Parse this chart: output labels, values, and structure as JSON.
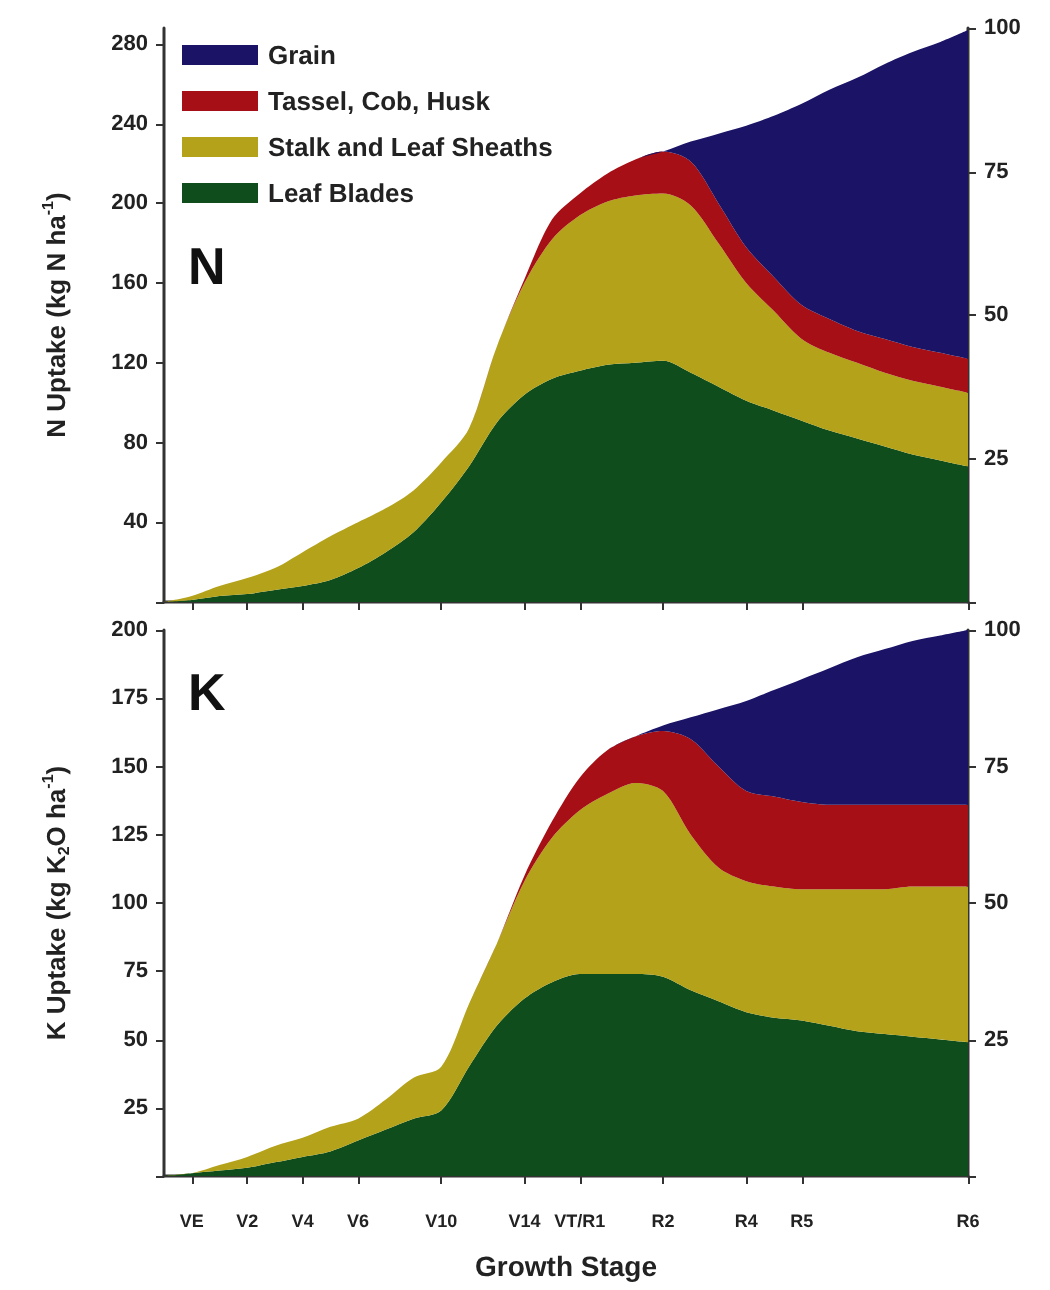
{
  "chart_data": [
    {
      "type": "area",
      "stacked": true,
      "ylabel": "N Uptake (kg N ha$^{-1}$)",
      "annotations": [
        "N"
      ],
      "legend": "top left",
      "tick_labels": "y",
      "categories": [
        null,
        null,
        null,
        null,
        null,
        null,
        null,
        null,
        null,
        null,
        null,
        null,
        null,
        null,
        null,
        null,
        null,
        null,
        null,
        null,
        null,
        null,
        null,
        null,
        null,
        null,
        null,
        null,
        null,
        null
      ],
      "ylim": [
        0,
        288
      ],
      "yticks": [
        {
          "value": 0,
          "label": null
        },
        40,
        80,
        120,
        160,
        200,
        240,
        280
      ],
      "y2lim": [
        0,
        100
      ],
      "y2ticks": [
        {
          "value": 0,
          "label": null
        },
        25,
        50,
        75,
        100
      ],
      "series": [
        {
          "name": "Leaf Blades",
          "color": "#0f4d1c",
          "values": [
            0,
            1,
            3,
            4,
            6,
            8,
            11,
            17,
            25,
            35,
            50,
            68,
            90,
            104,
            112,
            116,
            119,
            120,
            121,
            115,
            108,
            101,
            96,
            91,
            86,
            82,
            78,
            74,
            71,
            68
          ]
        },
        {
          "name": "Stalk and Leaf Sheaths",
          "color": "#b3a21a",
          "values": [
            0,
            2,
            5,
            8,
            11,
            17,
            22,
            23,
            22,
            21,
            20,
            19,
            38,
            56,
            70,
            78,
            82,
            84,
            84,
            84,
            72,
            59,
            50,
            41,
            39,
            38,
            37,
            37,
            37,
            37
          ]
        },
        {
          "name": "Tassel, Cob, Husk",
          "color": "#a50f15",
          "values": [
            0,
            0,
            0,
            0,
            0,
            0,
            0,
            0,
            0,
            0,
            0,
            0,
            0,
            2,
            10,
            11,
            14,
            18,
            21,
            22,
            20,
            18,
            17,
            17,
            17,
            16,
            17,
            17,
            17,
            17
          ]
        },
        {
          "name": "Grain",
          "color": "#1a1366",
          "values": [
            0,
            0,
            0,
            0,
            0,
            0,
            0,
            0,
            0,
            0,
            0,
            0,
            0,
            0,
            0,
            0,
            0,
            0,
            0,
            10,
            35,
            61,
            81,
            101,
            115,
            127,
            138,
            148,
            156,
            165
          ]
        }
      ]
    },
    {
      "type": "area",
      "stacked": true,
      "xlabel": "Growth Stage",
      "ylabel": "K Uptake (kg K$_{2}$O ha$^{-1}$)",
      "annotations": [
        "K"
      ],
      "categories": [
        null,
        "VE",
        null,
        "V2",
        null,
        "V4",
        null,
        "V6",
        null,
        null,
        "V10",
        null,
        null,
        "V14",
        null,
        "VT/R1",
        null,
        null,
        "R2",
        null,
        null,
        "R4",
        null,
        "R5",
        null,
        null,
        null,
        null,
        null,
        "R6"
      ],
      "ylim": [
        0,
        200
      ],
      "yticks": [
        {
          "value": 0,
          "label": null
        },
        25,
        50,
        75,
        100,
        125,
        150,
        175,
        200
      ],
      "y2lim": [
        0,
        100
      ],
      "y2ticks": [
        {
          "value": 0,
          "label": null
        },
        25,
        50,
        75,
        100
      ],
      "series": [
        {
          "color": "#0f4d1c",
          "values": [
            0,
            1,
            2,
            3,
            5,
            7,
            9,
            13,
            17,
            21,
            24,
            40,
            55,
            65,
            71,
            74,
            74,
            74,
            73,
            68,
            64,
            60,
            58,
            57,
            55,
            53,
            52,
            51,
            50,
            49
          ]
        },
        {
          "color": "#b3a21a",
          "values": [
            0,
            0,
            2,
            4,
            6,
            7,
            9,
            8,
            11,
            15,
            16,
            23,
            30,
            43,
            53,
            60,
            66,
            70,
            68,
            57,
            49,
            48,
            48,
            48,
            50,
            52,
            53,
            55,
            56,
            57
          ]
        },
        {
          "color": "#a50f15",
          "values": [
            0,
            0,
            0,
            0,
            0,
            0,
            0,
            0,
            0,
            0,
            0,
            0,
            0,
            2,
            6,
            12,
            16,
            17,
            22,
            35,
            37,
            33,
            33,
            32,
            31,
            31,
            31,
            30,
            30,
            30
          ]
        },
        {
          "color": "#1a1366",
          "values": [
            0,
            0,
            0,
            0,
            0,
            0,
            0,
            0,
            0,
            0,
            0,
            0,
            0,
            0,
            0,
            0,
            0,
            0,
            2,
            8,
            21,
            33,
            39,
            45,
            50,
            54,
            57,
            60,
            62,
            64
          ]
        }
      ]
    }
  ]
}
